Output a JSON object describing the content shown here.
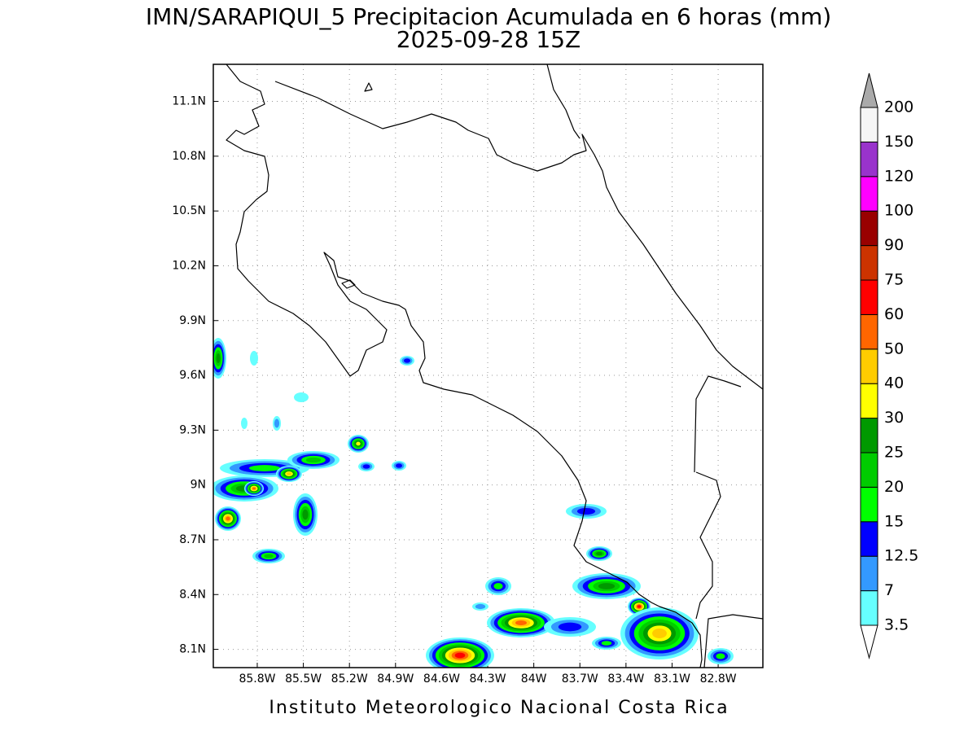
{
  "map": {
    "title": "IMN/SARAPIQUI_5 Precipitacion Acumulada en 6 horas (mm)",
    "subtitle": "2025-09-28 15Z",
    "footer": "Instituto Meteorologico Nacional Costa Rica",
    "xlim": [
      -86.086,
      -82.509
    ],
    "ylim": [
      8.0,
      11.303
    ],
    "grid": true,
    "xticks": [
      {
        "value": -85.8,
        "label": "85.8W"
      },
      {
        "value": -85.5,
        "label": "85.5W"
      },
      {
        "value": -85.2,
        "label": "85.2W"
      },
      {
        "value": -84.9,
        "label": "84.9W"
      },
      {
        "value": -84.6,
        "label": "84.6W"
      },
      {
        "value": -84.3,
        "label": "84.3W"
      },
      {
        "value": -84.0,
        "label": "84W"
      },
      {
        "value": -83.7,
        "label": "83.7W"
      },
      {
        "value": -83.4,
        "label": "83.4W"
      },
      {
        "value": -83.1,
        "label": "83.1W"
      },
      {
        "value": -82.8,
        "label": "82.8W"
      }
    ],
    "yticks": [
      {
        "value": 8.1,
        "label": "8.1N"
      },
      {
        "value": 8.4,
        "label": "8.4N"
      },
      {
        "value": 8.7,
        "label": "8.7N"
      },
      {
        "value": 9.0,
        "label": "9N"
      },
      {
        "value": 9.3,
        "label": "9.3N"
      },
      {
        "value": 9.6,
        "label": "9.6N"
      },
      {
        "value": 9.9,
        "label": "9.9N"
      },
      {
        "value": 10.2,
        "label": "10.2N"
      },
      {
        "value": 10.5,
        "label": "10.5N"
      },
      {
        "value": 10.8,
        "label": "10.8N"
      },
      {
        "value": 11.1,
        "label": "11.1N"
      }
    ],
    "colorbar": {
      "levels": [
        3.5,
        7,
        12.5,
        15,
        20,
        25,
        30,
        40,
        50,
        60,
        75,
        90,
        100,
        120,
        150,
        200
      ],
      "colors": [
        "#ffffff",
        "#66ffff",
        "#3399ff",
        "#0000ff",
        "#00ff00",
        "#00cc00",
        "#009900",
        "#ffff00",
        "#ffcc00",
        "#ff6600",
        "#ff0000",
        "#cc3300",
        "#990000",
        "#ff00ff",
        "#9933cc",
        "#f5f5f5",
        "#aaaaaa"
      ]
    }
  }
}
